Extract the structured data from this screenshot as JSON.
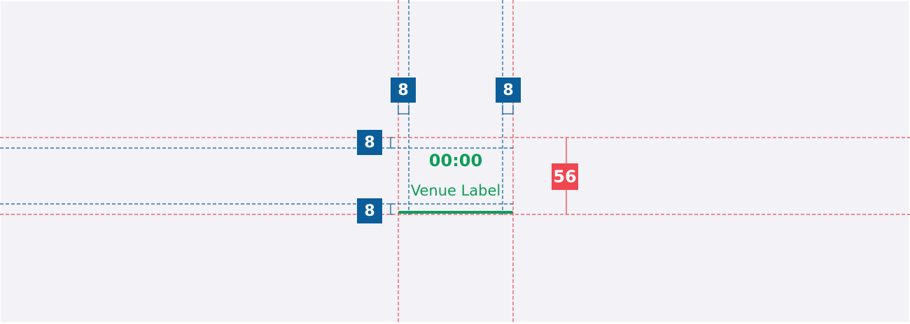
{
  "colors": {
    "canvas": "#f2f2f7",
    "outer_guide": "#ef4650",
    "padding_guide": "#0b5e99",
    "accent_green": "#0f9d58"
  },
  "spacing": {
    "padding_top": "8",
    "padding_bottom": "8",
    "padding_left": "8",
    "padding_right": "8",
    "total_height": "56"
  },
  "component": {
    "time": "00:00",
    "label": "Venue Label"
  }
}
